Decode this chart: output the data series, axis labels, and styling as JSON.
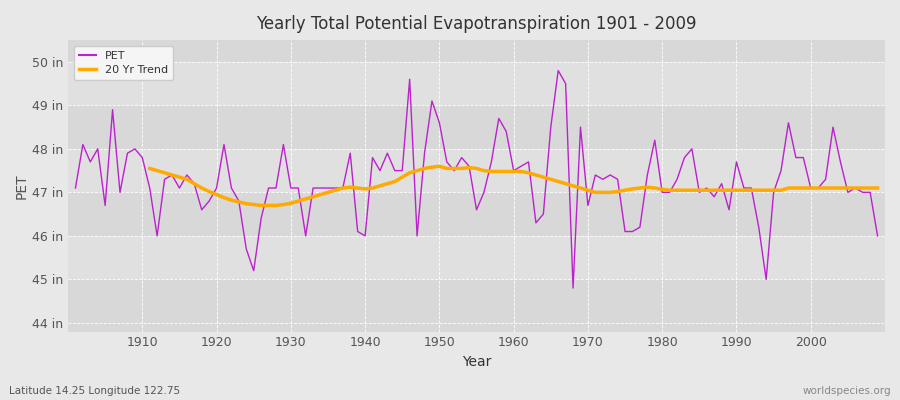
{
  "title": "Yearly Total Potential Evapotranspiration 1901 - 2009",
  "xlabel": "Year",
  "ylabel": "PET",
  "subtitle_left": "Latitude 14.25 Longitude 122.75",
  "subtitle_right": "worldspecies.org",
  "start_year": 1901,
  "end_year": 2009,
  "ylim": [
    43.8,
    50.5
  ],
  "yticks": [
    44,
    45,
    46,
    47,
    48,
    49,
    50
  ],
  "ytick_labels": [
    "44 in",
    "45 in",
    "46 in",
    "47 in",
    "48 in",
    "49 in",
    "50 in"
  ],
  "pet_color": "#bb22cc",
  "trend_color": "#ffaa00",
  "fig_bg_color": "#e8e8e8",
  "band_colors": [
    "#d8d8d8",
    "#e0e0e0"
  ],
  "legend_bg": "#f5f5f5",
  "pet_values": [
    47.1,
    48.1,
    47.7,
    48.0,
    46.7,
    48.9,
    47.0,
    47.9,
    48.0,
    47.8,
    47.1,
    46.0,
    47.3,
    47.4,
    47.1,
    47.4,
    47.2,
    46.6,
    46.8,
    47.1,
    48.1,
    47.1,
    46.8,
    45.7,
    45.2,
    46.4,
    47.1,
    47.1,
    48.1,
    47.1,
    47.1,
    46.0,
    47.1,
    47.1,
    47.1,
    47.1,
    47.1,
    47.9,
    46.1,
    46.0,
    47.8,
    47.5,
    47.9,
    47.5,
    47.5,
    49.6,
    46.0,
    47.9,
    49.1,
    48.6,
    47.7,
    47.5,
    47.8,
    47.6,
    46.6,
    47.0,
    47.7,
    48.7,
    48.4,
    47.5,
    47.6,
    47.7,
    46.3,
    46.5,
    48.5,
    49.8,
    49.5,
    44.8,
    48.5,
    46.7,
    47.4,
    47.3,
    47.4,
    47.3,
    46.1,
    46.1,
    46.2,
    47.4,
    48.2,
    47.0,
    47.0,
    47.3,
    47.8,
    48.0,
    47.0,
    47.1,
    46.9,
    47.2,
    46.6,
    47.7,
    47.1,
    47.1,
    46.2,
    45.0,
    47.0,
    47.5,
    48.6,
    47.8,
    47.8,
    47.1,
    47.1,
    47.3,
    48.5,
    47.7,
    47.0,
    47.1,
    47.0,
    47.0,
    46.0
  ],
  "trend_values": [
    null,
    null,
    null,
    null,
    null,
    null,
    null,
    null,
    null,
    null,
    47.55,
    47.5,
    47.45,
    47.4,
    47.35,
    47.3,
    47.2,
    47.1,
    47.02,
    46.95,
    46.88,
    46.82,
    46.78,
    46.74,
    46.72,
    46.7,
    46.7,
    46.7,
    46.72,
    46.75,
    46.8,
    46.85,
    46.9,
    46.95,
    47.0,
    47.05,
    47.1,
    47.12,
    47.1,
    47.08,
    47.1,
    47.15,
    47.2,
    47.25,
    47.35,
    47.45,
    47.5,
    47.55,
    47.58,
    47.6,
    47.55,
    47.55,
    47.55,
    47.57,
    47.55,
    47.5,
    47.48,
    47.48,
    47.48,
    47.48,
    47.48,
    47.45,
    47.4,
    47.35,
    47.3,
    47.25,
    47.2,
    47.15,
    47.1,
    47.05,
    47.0,
    47.0,
    47.0,
    47.02,
    47.05,
    47.08,
    47.1,
    47.12,
    47.1,
    47.07,
    47.05,
    47.05,
    47.05,
    47.05,
    47.05,
    47.05,
    47.05,
    47.05,
    47.05,
    47.05,
    47.05,
    47.05,
    47.05,
    47.05,
    47.05,
    47.05,
    47.1,
    47.1,
    47.1,
    47.1,
    47.1,
    47.1,
    47.1,
    47.1,
    47.1,
    47.1,
    47.1,
    47.1,
    47.1
  ]
}
